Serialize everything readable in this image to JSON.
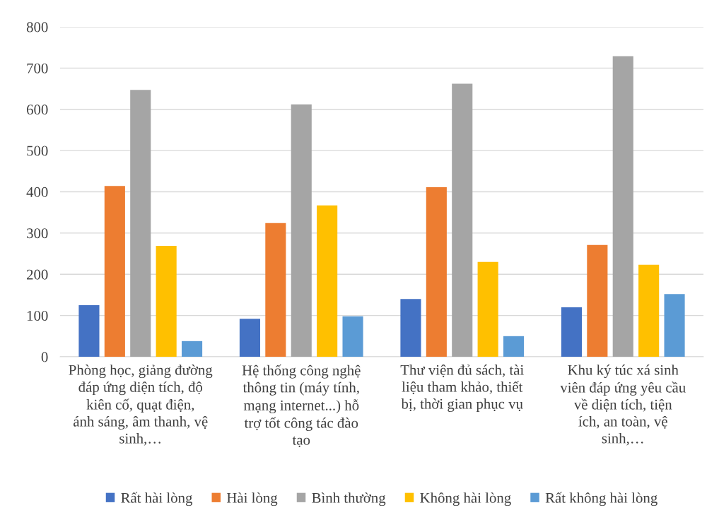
{
  "chart_data": {
    "type": "bar",
    "categories": [
      "Phòng học, giảng đường đáp ứng diện tích, độ kiên cố, quạt điện, ánh sáng, âm thanh, vệ sinh,…",
      "Hệ thống công nghệ thông tin (máy tính, mạng internet...) hỗ trợ tốt công tác đào tạo",
      "Thư viện đủ sách, tài liệu tham khảo, thiết bị, thời gian phục vụ",
      "Khu ký túc xá sinh viên đáp ứng yêu cầu về diện tích, tiện ích, an toàn, vệ sinh,…"
    ],
    "series": [
      {
        "name": "Rất hài lòng",
        "color": "#4472c4",
        "values": [
          125,
          92,
          140,
          120
        ]
      },
      {
        "name": "Hài lòng",
        "color": "#ed7d31",
        "values": [
          414,
          324,
          411,
          271
        ]
      },
      {
        "name": "Bình thường",
        "color": "#a5a5a5",
        "values": [
          647,
          612,
          662,
          729
        ]
      },
      {
        "name": "Không hài lòng",
        "color": "#ffc000",
        "values": [
          269,
          367,
          230,
          223
        ]
      },
      {
        "name": "Rất không hài lòng",
        "color": "#5b9bd5",
        "values": [
          38,
          98,
          50,
          152
        ]
      }
    ],
    "ylim": [
      0,
      800
    ],
    "yticks": [
      0,
      100,
      200,
      300,
      400,
      500,
      600,
      700,
      800
    ],
    "grid": "y",
    "legend": "bottom"
  }
}
